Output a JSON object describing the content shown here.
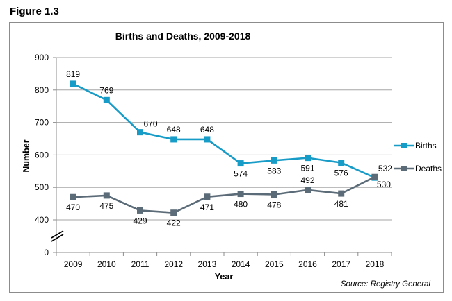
{
  "figure_label": "Figure 1.3",
  "chart_data": {
    "type": "line",
    "title": "Births and Deaths, 2009-2018",
    "xlabel": "Year",
    "ylabel": "Number",
    "categories": [
      "2009",
      "2010",
      "2011",
      "2012",
      "2013",
      "2014",
      "2015",
      "2016",
      "2017",
      "2018"
    ],
    "yticks": [
      0,
      400,
      500,
      600,
      700,
      800,
      900
    ],
    "ytick_labels": [
      "0",
      "400",
      "500",
      "600",
      "700",
      "800",
      "900"
    ],
    "ylim": [
      0,
      900
    ],
    "axis_break": "between 0 and 400",
    "grid": true,
    "legend_placement": "right",
    "series": [
      {
        "name": "Births",
        "color": "#179bc7",
        "values": [
          819,
          769,
          670,
          648,
          648,
          574,
          583,
          591,
          576,
          530
        ],
        "label_positions": [
          "above",
          "above",
          "above-right",
          "above",
          "above",
          "below",
          "below",
          "below",
          "below",
          "below-right"
        ]
      },
      {
        "name": "Deaths",
        "color": "#5b6b77",
        "values": [
          470,
          475,
          429,
          422,
          471,
          480,
          478,
          492,
          481,
          532
        ],
        "label_positions": [
          "below",
          "below",
          "below",
          "below",
          "below",
          "below",
          "below",
          "above",
          "below",
          "above-right"
        ]
      }
    ],
    "source": "Source:  Registry General"
  }
}
